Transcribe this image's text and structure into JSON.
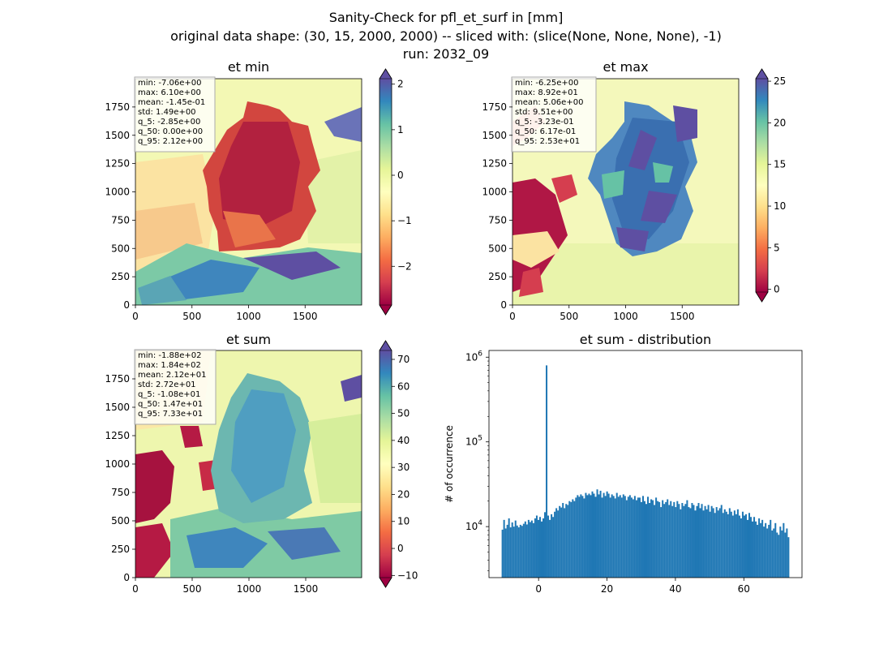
{
  "figure": {
    "title_lines": [
      "Sanity-Check for pfl_et_surf in [mm]",
      "original data shape: (30, 15, 2000, 2000) -- sliced with: (slice(None, None, None), -1)",
      "run: 2032_09"
    ]
  },
  "panels": [
    {
      "title": "et min",
      "stats": [
        "min: -7.06e+00",
        "max: 6.10e+00",
        "mean: -1.45e-01",
        "std: 1.49e+00",
        "q_5: -2.85e+00",
        "q_50: 0.00e+00",
        "q_95: 2.12e+00"
      ],
      "colorbar": {
        "min": -2.85,
        "max": 2.12,
        "ticks": [
          -2,
          -1,
          0,
          1,
          2
        ],
        "tick_labels": [
          "−2",
          "−1",
          "0",
          "1",
          "2"
        ],
        "extend": "both",
        "colormap": "Spectral"
      }
    },
    {
      "title": "et max",
      "stats": [
        "min: -6.25e+00",
        "max: 8.92e+01",
        "mean: 5.06e+00",
        "std: 9.51e+00",
        "q_5: -3.23e-01",
        "q_50: 6.17e-01",
        "q_95: 2.53e+01"
      ],
      "colorbar": {
        "min": -0.323,
        "max": 25.3,
        "ticks": [
          0,
          5,
          10,
          15,
          20,
          25
        ],
        "tick_labels": [
          "0",
          "5",
          "10",
          "15",
          "20",
          "25"
        ],
        "extend": "both",
        "colormap": "Spectral"
      }
    },
    {
      "title": "et sum",
      "stats": [
        "min: -1.88e+02",
        "max: 1.84e+02",
        "mean: 2.12e+01",
        "std: 2.72e+01",
        "q_5: -1.08e+01",
        "q_50: 1.47e+01",
        "q_95: 7.33e+01"
      ],
      "colorbar": {
        "min": -10.8,
        "max": 73.3,
        "ticks": [
          -10,
          0,
          10,
          20,
          30,
          40,
          50,
          60,
          70
        ],
        "tick_labels": [
          "−10",
          "0",
          "10",
          "20",
          "30",
          "40",
          "50",
          "60",
          "70"
        ],
        "extend": "both",
        "colormap": "Spectral"
      }
    }
  ],
  "map_axes": {
    "x_ticks": [
      0,
      500,
      1000,
      1500
    ],
    "y_ticks": [
      0,
      250,
      500,
      750,
      1000,
      1250,
      1500,
      1750
    ],
    "xlim": [
      0,
      2000
    ],
    "ylim": [
      0,
      2000
    ]
  },
  "chart_data": {
    "type": "bar",
    "title": "et sum - distribution",
    "xlabel": "",
    "ylabel": "# of occurrence",
    "yscale": "log",
    "xlim": [
      -14.5,
      77
    ],
    "ylim": [
      2500,
      1200000
    ],
    "x_ticks": [
      0,
      20,
      40,
      60
    ],
    "y_ticks": [
      10000,
      100000,
      1000000
    ],
    "y_tick_labels": [
      "10^4",
      "10^5",
      "10^6"
    ],
    "color": "#1f77b4",
    "bins": {
      "start": -10.8,
      "end": 73.3,
      "counts": [
        9200,
        12000,
        9500,
        10500,
        12500,
        9800,
        11200,
        10000,
        11800,
        10300,
        9800,
        10500,
        10200,
        10800,
        11500,
        10600,
        12000,
        11300,
        11800,
        11000,
        12500,
        13500,
        12000,
        13000,
        11500,
        12500,
        14800,
        800000,
        13500,
        12000,
        14000,
        13000,
        15000,
        16500,
        15500,
        17500,
        16800,
        19000,
        16500,
        18500,
        18000,
        20000,
        19500,
        21000,
        20000,
        22000,
        23500,
        22500,
        24000,
        23000,
        21500,
        25000,
        23500,
        24500,
        23500,
        26000,
        24500,
        22500,
        27500,
        24000,
        26500,
        22000,
        25000,
        23000,
        26000,
        24500,
        22000,
        24000,
        23000,
        21500,
        25000,
        22500,
        23500,
        22000,
        24000,
        23000,
        20500,
        22500,
        23500,
        22000,
        21000,
        23000,
        20500,
        22000,
        22000,
        19500,
        23000,
        20000,
        18500,
        22500,
        19000,
        21000,
        20500,
        18000,
        22000,
        20000,
        19500,
        17000,
        20500,
        18500,
        19500,
        21000,
        18000,
        20000,
        17500,
        19500,
        17000,
        20000,
        18500,
        16000,
        19000,
        17500,
        18500,
        20500,
        17000,
        16500,
        19000,
        18000,
        15500,
        17500,
        19000,
        16500,
        18500,
        15500,
        17500,
        16000,
        18000,
        15000,
        17500,
        16500,
        14500,
        17000,
        15500,
        16500,
        18000,
        14500,
        16000,
        15000,
        14000,
        16500,
        15000,
        13500,
        15500,
        14000,
        16000,
        13500,
        12500,
        15000,
        13500,
        14000,
        12000,
        14500,
        13000,
        11500,
        13000,
        11500,
        10500,
        12500,
        11000,
        12000,
        10000,
        11000,
        9500,
        10500,
        12000,
        9000,
        9500,
        11000,
        8500,
        8000,
        10000,
        9000,
        11000,
        8500,
        9500,
        7500
      ]
    }
  }
}
